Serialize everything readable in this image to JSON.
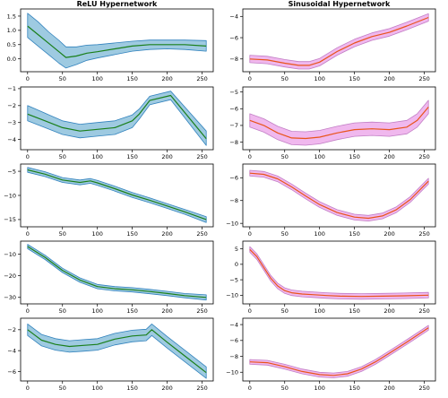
{
  "colors": {
    "relu_band": "#9ecae1",
    "relu_band_edge": "#3182bd",
    "relu_line": "#1a7f1a",
    "sin_band": "#f0b8ee",
    "sin_band_edge": "#c27ec5",
    "sin_line": "#e8541a"
  },
  "chart_data": [
    {
      "type": "line",
      "column": "relu",
      "row": 0,
      "title": "ReLU Hypernetwork",
      "xlim": [
        -10,
        266
      ],
      "ylim": [
        -0.45,
        1.75
      ],
      "xticks": [
        0,
        50,
        100,
        150,
        200,
        250
      ],
      "yticks": [
        0.0,
        0.5,
        1.0,
        1.5
      ],
      "ytick_labels": [
        "0.0",
        "0.5",
        "1.0",
        "1.5"
      ],
      "x": [
        0,
        15,
        30,
        45,
        55,
        70,
        85,
        100,
        125,
        150,
        175,
        200,
        225,
        256
      ],
      "mean": [
        1.15,
        0.85,
        0.55,
        0.25,
        0.05,
        0.1,
        0.2,
        0.25,
        0.35,
        0.45,
        0.5,
        0.5,
        0.5,
        0.45
      ],
      "lower": [
        0.75,
        0.45,
        0.15,
        -0.15,
        -0.32,
        -0.2,
        -0.05,
        0.03,
        0.15,
        0.27,
        0.33,
        0.35,
        0.33,
        0.27
      ],
      "upper": [
        1.6,
        1.3,
        0.95,
        0.65,
        0.42,
        0.42,
        0.48,
        0.5,
        0.56,
        0.62,
        0.66,
        0.66,
        0.66,
        0.64
      ]
    },
    {
      "type": "line",
      "column": "relu",
      "row": 1,
      "title": "",
      "xlim": [
        -10,
        266
      ],
      "ylim": [
        -4.6,
        -0.9
      ],
      "xticks": [
        0,
        50,
        100,
        150,
        200,
        250
      ],
      "yticks": [
        -4,
        -3,
        -2,
        -1
      ],
      "ytick_labels": [
        "−4",
        "−3",
        "−2",
        "−1"
      ],
      "x": [
        0,
        25,
        50,
        75,
        100,
        125,
        150,
        160,
        175,
        205,
        256
      ],
      "mean": [
        -2.5,
        -2.9,
        -3.3,
        -3.5,
        -3.4,
        -3.3,
        -2.9,
        -2.5,
        -1.7,
        -1.4,
        -3.95
      ],
      "lower": [
        -2.9,
        -3.3,
        -3.7,
        -3.9,
        -3.8,
        -3.7,
        -3.3,
        -2.8,
        -1.95,
        -1.65,
        -4.35
      ],
      "upper": [
        -2.0,
        -2.45,
        -2.9,
        -3.1,
        -3.0,
        -2.9,
        -2.55,
        -2.2,
        -1.45,
        -1.15,
        -3.5
      ]
    },
    {
      "type": "line",
      "column": "relu",
      "row": 2,
      "title": "",
      "xlim": [
        -10,
        266
      ],
      "ylim": [
        -16.5,
        -3.5
      ],
      "xticks": [
        0,
        50,
        100,
        150,
        200,
        250
      ],
      "yticks": [
        -15,
        -10,
        -5
      ],
      "ytick_labels": [
        "−15",
        "−10",
        "−5"
      ],
      "x": [
        0,
        25,
        50,
        75,
        90,
        100,
        125,
        150,
        175,
        200,
        225,
        256
      ],
      "mean": [
        -4.7,
        -5.6,
        -6.8,
        -7.3,
        -7.0,
        -7.4,
        -8.6,
        -9.9,
        -11.0,
        -12.2,
        -13.4,
        -15.0
      ],
      "lower": [
        -5.2,
        -6.1,
        -7.3,
        -7.8,
        -7.5,
        -7.9,
        -9.1,
        -10.4,
        -11.5,
        -12.7,
        -13.9,
        -15.6
      ],
      "upper": [
        -4.2,
        -5.1,
        -6.3,
        -6.8,
        -6.5,
        -6.9,
        -8.1,
        -9.4,
        -10.5,
        -11.7,
        -12.9,
        -14.4
      ]
    },
    {
      "type": "line",
      "column": "relu",
      "row": 3,
      "title": "",
      "xlim": [
        -10,
        266
      ],
      "ylim": [
        -33,
        -4
      ],
      "xticks": [
        0,
        50,
        100,
        150,
        200,
        250
      ],
      "yticks": [
        -30,
        -20,
        -10
      ],
      "ytick_labels": [
        "−30",
        "−20",
        "−10"
      ],
      "x": [
        0,
        25,
        50,
        75,
        100,
        125,
        150,
        175,
        200,
        225,
        256
      ],
      "mean": [
        -6.5,
        -11.5,
        -17.5,
        -22.0,
        -25.0,
        -26.0,
        -26.5,
        -27.3,
        -28.2,
        -29.2,
        -30.0
      ],
      "lower": [
        -7.5,
        -12.5,
        -18.5,
        -23.0,
        -26.0,
        -27.0,
        -27.5,
        -28.3,
        -29.2,
        -30.2,
        -31.2
      ],
      "upper": [
        -5.5,
        -10.5,
        -16.5,
        -21.0,
        -24.0,
        -25.0,
        -25.5,
        -26.3,
        -27.2,
        -28.2,
        -28.8
      ]
    },
    {
      "type": "line",
      "column": "relu",
      "row": 4,
      "title": "",
      "xlim": [
        -10,
        266
      ],
      "ylim": [
        -6.9,
        -0.9
      ],
      "xticks": [
        0,
        50,
        100,
        150,
        200,
        250
      ],
      "yticks": [
        -6,
        -4,
        -2
      ],
      "ytick_labels": [
        "−6",
        "−4",
        "−2"
      ],
      "x": [
        0,
        10,
        20,
        40,
        60,
        80,
        100,
        125,
        150,
        170,
        178,
        200,
        225,
        256
      ],
      "mean": [
        -2.0,
        -2.5,
        -3.0,
        -3.4,
        -3.6,
        -3.5,
        -3.4,
        -2.9,
        -2.6,
        -2.5,
        -2.0,
        -3.2,
        -4.5,
        -6.1
      ],
      "lower": [
        -2.55,
        -3.05,
        -3.55,
        -3.95,
        -4.15,
        -4.05,
        -3.95,
        -3.45,
        -3.15,
        -3.05,
        -2.55,
        -3.75,
        -5.05,
        -6.65
      ],
      "upper": [
        -1.45,
        -1.95,
        -2.45,
        -2.85,
        -3.05,
        -2.95,
        -2.85,
        -2.35,
        -2.05,
        -1.95,
        -1.45,
        -2.65,
        -3.95,
        -5.55
      ]
    },
    {
      "type": "line",
      "column": "sin",
      "row": 0,
      "title": "Sinusoidal Hypernetwork",
      "xlim": [
        -10,
        266
      ],
      "ylim": [
        -9.2,
        -3.3
      ],
      "xticks": [
        0,
        50,
        100,
        150,
        200,
        250
      ],
      "yticks": [
        -8,
        -6,
        -4
      ],
      "ytick_labels": [
        "−8",
        "−6",
        "−4"
      ],
      "x": [
        0,
        25,
        50,
        70,
        85,
        100,
        125,
        150,
        175,
        200,
        225,
        256
      ],
      "mean": [
        -8.0,
        -8.1,
        -8.4,
        -8.6,
        -8.6,
        -8.3,
        -7.3,
        -6.5,
        -5.9,
        -5.5,
        -4.9,
        -4.1
      ],
      "band": 0.35
    },
    {
      "type": "line",
      "column": "sin",
      "row": 1,
      "title": "",
      "xlim": [
        -10,
        266
      ],
      "ylim": [
        -8.45,
        -4.7
      ],
      "xticks": [
        0,
        50,
        100,
        150,
        200,
        250
      ],
      "yticks": [
        -8,
        -7,
        -6,
        -5
      ],
      "ytick_labels": [
        "−8",
        "−7",
        "−6",
        "−5"
      ],
      "x": [
        0,
        20,
        40,
        60,
        80,
        100,
        125,
        150,
        175,
        200,
        225,
        240,
        256
      ],
      "mean": [
        -6.7,
        -7.0,
        -7.45,
        -7.75,
        -7.78,
        -7.7,
        -7.45,
        -7.25,
        -7.2,
        -7.25,
        -7.1,
        -6.7,
        -5.9
      ],
      "band": 0.4
    },
    {
      "type": "line",
      "column": "sin",
      "row": 2,
      "title": "",
      "xlim": [
        -10,
        266
      ],
      "ylim": [
        -10.3,
        -4.8
      ],
      "xticks": [
        0,
        50,
        100,
        150,
        200,
        250
      ],
      "yticks": [
        -10,
        -8,
        -6
      ],
      "ytick_labels": [
        "−10",
        "−8",
        "−6"
      ],
      "x": [
        0,
        20,
        40,
        60,
        80,
        100,
        125,
        150,
        170,
        190,
        210,
        230,
        256
      ],
      "mean": [
        -5.6,
        -5.7,
        -6.1,
        -6.8,
        -7.6,
        -8.35,
        -9.05,
        -9.45,
        -9.55,
        -9.35,
        -8.8,
        -7.9,
        -6.3
      ],
      "band": 0.25
    },
    {
      "type": "line",
      "column": "sin",
      "row": 3,
      "title": "",
      "xlim": [
        -10,
        266
      ],
      "ylim": [
        -12.8,
        7.5
      ],
      "xticks": [
        0,
        50,
        100,
        150,
        200,
        250
      ],
      "yticks": [
        -10,
        -5,
        0,
        5
      ],
      "ytick_labels": [
        "−10",
        "−5",
        "0",
        "5"
      ],
      "x": [
        0,
        10,
        20,
        30,
        40,
        50,
        60,
        75,
        90,
        110,
        130,
        160,
        190,
        220,
        256
      ],
      "mean": [
        4.8,
        2.5,
        -1.0,
        -4.5,
        -7.0,
        -8.5,
        -9.2,
        -9.6,
        -9.8,
        -10.1,
        -10.3,
        -10.4,
        -10.3,
        -10.2,
        -10.0
      ],
      "band": 0.9
    },
    {
      "type": "line",
      "column": "sin",
      "row": 4,
      "title": "",
      "xlim": [
        -10,
        266
      ],
      "ylim": [
        -11.1,
        -3.2
      ],
      "xticks": [
        0,
        50,
        100,
        150,
        200,
        250
      ],
      "yticks": [
        -10,
        -8,
        -6,
        -4
      ],
      "ytick_labels": [
        "−10",
        "−8",
        "−6",
        "−4"
      ],
      "x": [
        0,
        25,
        50,
        75,
        100,
        120,
        140,
        160,
        180,
        200,
        225,
        256
      ],
      "mean": [
        -8.7,
        -8.8,
        -9.3,
        -9.9,
        -10.3,
        -10.4,
        -10.2,
        -9.6,
        -8.7,
        -7.6,
        -6.2,
        -4.4
      ],
      "band": 0.3
    }
  ]
}
